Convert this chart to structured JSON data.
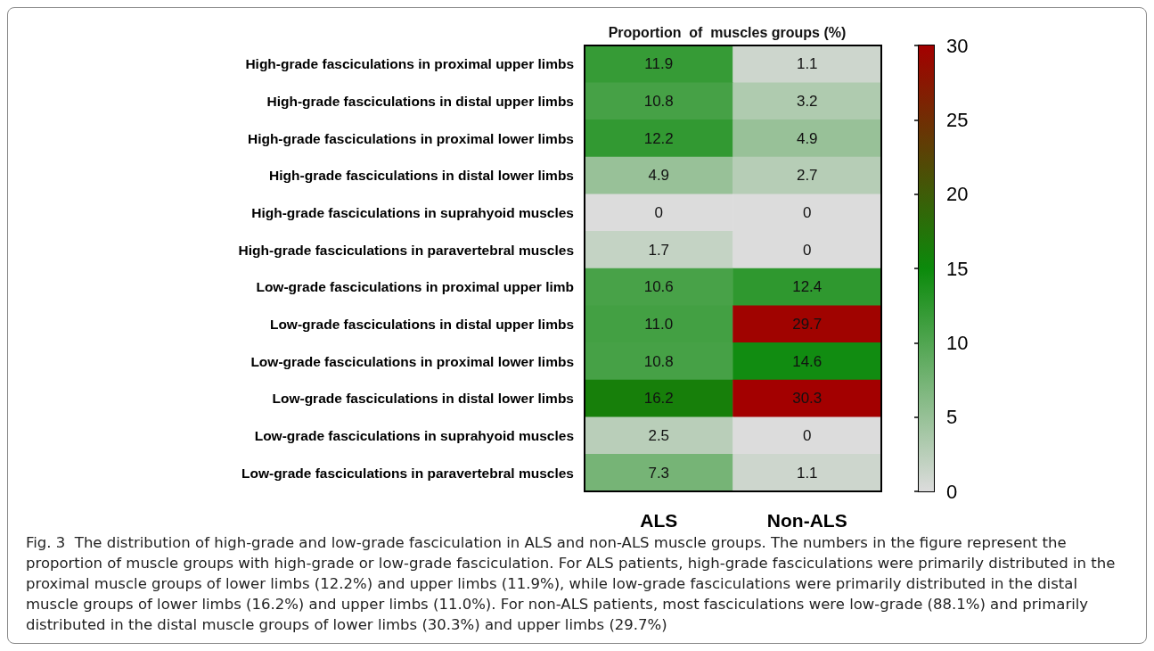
{
  "chart_data": {
    "type": "heatmap",
    "title": "Proportion  of  muscles groups (%)",
    "categories": [
      "ALS",
      "Non-ALS"
    ],
    "y_categories": [
      "High-grade fasciculations in proximal upper limbs",
      "High-grade fasciculations in distal upper limbs",
      "High-grade fasciculations in proximal lower limbs",
      "High-grade fasciculations in distal lower limbs",
      "High-grade fasciculations in suprahyoid muscles",
      "High-grade fasciculations in paravertebral muscles",
      "Low-grade fasciculations in proximal upper limb",
      "Low-grade fasciculations in distal upper limbs",
      "Low-grade fasciculations in proximal lower limbs",
      "Low-grade fasciculations in distal lower limbs",
      "Low-grade fasciculations in suprahyoid muscles",
      "Low-grade fasciculations in paravertebral muscles"
    ],
    "cells": [
      [
        11.9,
        1.1
      ],
      [
        10.8,
        3.2
      ],
      [
        12.2,
        4.9
      ],
      [
        4.9,
        2.7
      ],
      [
        0,
        0
      ],
      [
        1.7,
        0
      ],
      [
        10.6,
        12.4
      ],
      [
        11.0,
        29.7
      ],
      [
        10.8,
        14.6
      ],
      [
        16.2,
        30.3
      ],
      [
        2.5,
        0
      ],
      [
        7.3,
        1.1
      ]
    ],
    "cell_labels": [
      [
        "11.9",
        "1.1"
      ],
      [
        "10.8",
        "3.2"
      ],
      [
        "12.2",
        "4.9"
      ],
      [
        "4.9",
        "2.7"
      ],
      [
        "0",
        "0"
      ],
      [
        "1.7",
        "0"
      ],
      [
        "10.6",
        "12.4"
      ],
      [
        "11.0",
        "29.7"
      ],
      [
        "10.8",
        "14.6"
      ],
      [
        "16.2",
        "30.3"
      ],
      [
        "2.5",
        "0"
      ],
      [
        "7.3",
        "1.1"
      ]
    ],
    "data_labels": true,
    "clim": [
      0,
      30
    ],
    "cticks": [
      0,
      5,
      10,
      15,
      20,
      25,
      30
    ],
    "annotations": [
      "Fig. 3  The distribution of high-grade and low-grade fasciculation in ALS and non-ALS muscle groups. The numbers in the figure represent the proportion of muscle groups with high-grade or low-grade fasciculation. For ALS patients, high-grade fasciculations were primarily distributed in the proximal muscle groups of lower limbs (12.2%) and upper limbs (11.9%), while low-grade fasciculations were primarily distributed in the distal muscle groups of lower limbs (16.2%) and upper limbs (11.0%). For non-ALS patients, most fasciculations were low-grade (88.1%) and primarily distributed in the distal muscle groups of lower limbs (30.3%) and upper limbs (29.7%)"
    ]
  }
}
